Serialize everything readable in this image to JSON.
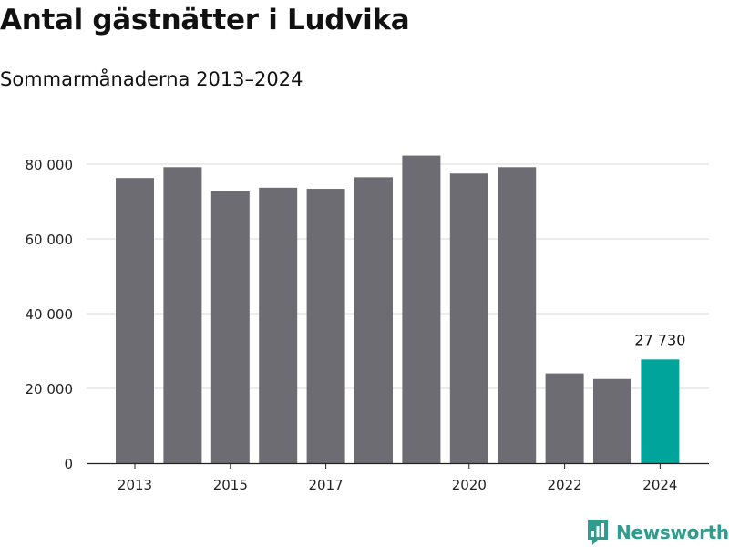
{
  "page": {
    "title": "Antal gästnätter i Ludvika",
    "subtitle": "Sommarmånaderna 2013–2024"
  },
  "chart_data": {
    "type": "bar",
    "title": "Antal gästnätter i Ludvika",
    "subtitle": "Sommarmånaderna 2013–2024",
    "xlabel": "",
    "ylabel": "",
    "categories": [
      "2013",
      "2014",
      "2015",
      "2016",
      "2017",
      "2018",
      "2019",
      "2020",
      "2021",
      "2022",
      "2023",
      "2024"
    ],
    "values": [
      76300,
      79200,
      72700,
      73700,
      73400,
      76500,
      82300,
      77500,
      79200,
      24000,
      22500,
      27730
    ],
    "x_tick_labels": [
      "2013",
      "2015",
      "2017",
      "2020",
      "2022",
      "2024"
    ],
    "y_ticks": [
      0,
      20000,
      40000,
      60000,
      80000
    ],
    "y_tick_labels": [
      "0",
      "20 000",
      "40 000",
      "60 000",
      "80 000"
    ],
    "ylim": [
      0,
      85000
    ],
    "grid": true,
    "bar_color": "#6d6c73",
    "highlight_color": "#00a49a",
    "highlight_category": "2024",
    "data_labels": [
      {
        "category": "2024",
        "text": "27 730"
      }
    ]
  },
  "branding": {
    "logo_text": "Newsworthy",
    "logo_icon": "newsworthy-bar-chart-icon",
    "logo_color": "#2f9c8d"
  }
}
